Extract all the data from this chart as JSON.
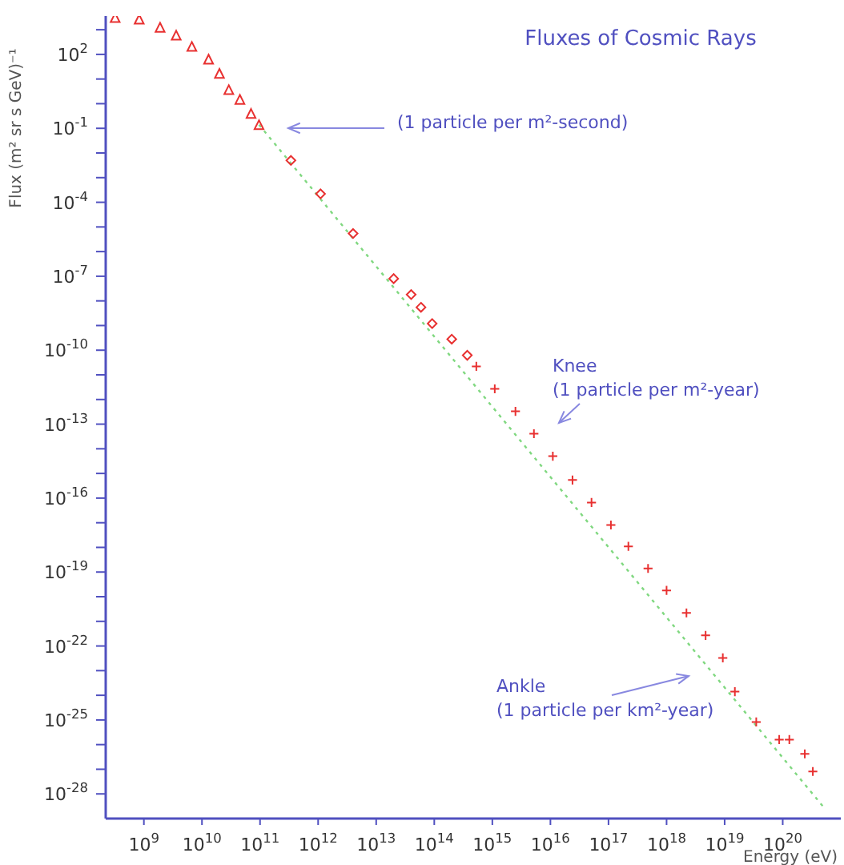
{
  "chart_data": {
    "type": "scatter",
    "title": "Fluxes of Cosmic Rays",
    "xlabel": "Energy (eV)",
    "ylabel": "Flux (m² sr s GeV)⁻¹",
    "log": "xy",
    "xlim": [
      220000000.0,
      1e+21
    ],
    "ylim": [
      1e-29,
      3600.0
    ],
    "xticks": [
      {
        "value": 1000000000.0,
        "label": "10$^{9}$"
      },
      {
        "value": 10000000000.0,
        "label": "10$^{10}$"
      },
      {
        "value": 100000000000.0,
        "label": "10$^{11}$"
      },
      {
        "value": 1000000000000.0,
        "label": "10$^{12}$"
      },
      {
        "value": 10000000000000.0,
        "label": "10$^{13}$"
      },
      {
        "value": 100000000000000.0,
        "label": "10$^{14}$"
      },
      {
        "value": 1000000000000000.0,
        "label": "10$^{15}$"
      },
      {
        "value": 1e+16,
        "label": "10$^{16}$"
      },
      {
        "value": 1e+17,
        "label": "10$^{17}$"
      },
      {
        "value": 1e+18,
        "label": "10$^{18}$"
      },
      {
        "value": 1e+19,
        "label": "10$^{19}$"
      },
      {
        "value": 1e+20,
        "label": "10$^{20}$"
      }
    ],
    "yticks": [
      {
        "value": 1000.0,
        "label": null
      },
      {
        "value": 100.0,
        "label": "10$^{2}$"
      },
      {
        "value": 10.0,
        "label": null
      },
      {
        "value": 1,
        "label": null
      },
      {
        "value": 0.1,
        "label": "10$^{-1}$"
      },
      {
        "value": 0.01,
        "label": null
      },
      {
        "value": 0.001,
        "label": null
      },
      {
        "value": 0.0001,
        "label": "10$^{-4}$"
      },
      {
        "value": 1e-05,
        "label": null
      },
      {
        "value": 1e-06,
        "label": null
      },
      {
        "value": 1e-07,
        "label": "10$^{-7}$"
      },
      {
        "value": 1e-08,
        "label": null
      },
      {
        "value": 1e-09,
        "label": null
      },
      {
        "value": 1e-10,
        "label": "10$^{-10}$"
      },
      {
        "value": 1e-11,
        "label": null
      },
      {
        "value": 1e-12,
        "label": null
      },
      {
        "value": 1e-13,
        "label": "10$^{-13}$"
      },
      {
        "value": 1e-14,
        "label": null
      },
      {
        "value": 1e-15,
        "label": null
      },
      {
        "value": 1e-16,
        "label": "10$^{-16}$"
      },
      {
        "value": 1e-17,
        "label": null
      },
      {
        "value": 1e-18,
        "label": null
      },
      {
        "value": 1e-19,
        "label": "10$^{-19}$"
      },
      {
        "value": 1e-20,
        "label": null
      },
      {
        "value": 1e-21,
        "label": null
      },
      {
        "value": 1e-22,
        "label": "10$^{-22}$"
      },
      {
        "value": 1e-23,
        "label": null
      },
      {
        "value": 1e-24,
        "label": null
      },
      {
        "value": 1e-25,
        "label": "10$^{-25}$"
      },
      {
        "value": 1e-26,
        "label": null
      },
      {
        "value": 1e-27,
        "label": null
      },
      {
        "value": 1e-28,
        "label": "10$^{-28}$"
      }
    ],
    "series": [
      {
        "type": "line",
        "color": "#80d880",
        "marker": "none",
        "line_style": "dotted",
        "x": [
          96000000000.0,
          5e+20
        ],
        "values": [
          0.14,
          3e-29
        ]
      },
      {
        "color": "#e83030",
        "marker": "triangle",
        "x": [
          320000000.0,
          830000000.0,
          1900000000.0,
          3600000000.0,
          6700000000.0,
          13000000000.0,
          20000000000.0,
          29000000000.0,
          45000000000.0,
          70000000000.0,
          96000000000.0
        ],
        "values": [
          3100,
          2700,
          1260,
          600,
          210,
          64,
          17,
          3.7,
          1.5,
          0.4,
          0.14
        ]
      },
      {
        "color": "#e83030",
        "marker": "diamond",
        "x": [
          340000000000.0,
          1100000000000.0,
          4000000000000.0,
          20000000000000.0,
          40000000000000.0,
          59000000000000.0,
          92000000000000.0,
          200000000000000.0,
          370000000000000.0
        ],
        "values": [
          0.005,
          0.00022,
          5.4e-06,
          8e-08,
          1.8e-08,
          5.5e-09,
          1.2e-09,
          2.8e-10,
          6.2e-11
        ]
      },
      {
        "color": "#e83030",
        "marker": "cross",
        "x": [
          530000000000000.0,
          1100000000000000.0,
          2500000000000000.0,
          5200000000000000.0,
          1.1e+16,
          2.4e+16,
          5.1e+16,
          1.1e+17,
          2.2e+17,
          4.8e+17,
          1e+18,
          2.2e+18,
          4.7e+18,
          9.3e+18,
          1.5e+19,
          3.5e+19,
          8.7e+19,
          1.3e+20,
          2.4e+20,
          3.3e+20
        ],
        "values": [
          2.2e-11,
          2.7e-12,
          3.3e-13,
          4.1e-14,
          5e-15,
          5.4e-16,
          6.6e-17,
          8.1e-18,
          1.1e-18,
          1.4e-19,
          1.8e-20,
          2.2e-21,
          2.7e-22,
          3.3e-23,
          1.4e-24,
          8.3e-26,
          1.6e-26,
          1.6e-26,
          4.2e-27,
          8.1e-28
        ]
      }
    ],
    "annotations": [
      "(1 particle per m²-second)",
      "Knee\n(1 particle per m²-year)",
      "Ankle\n(1 particle per km²-year)"
    ]
  }
}
